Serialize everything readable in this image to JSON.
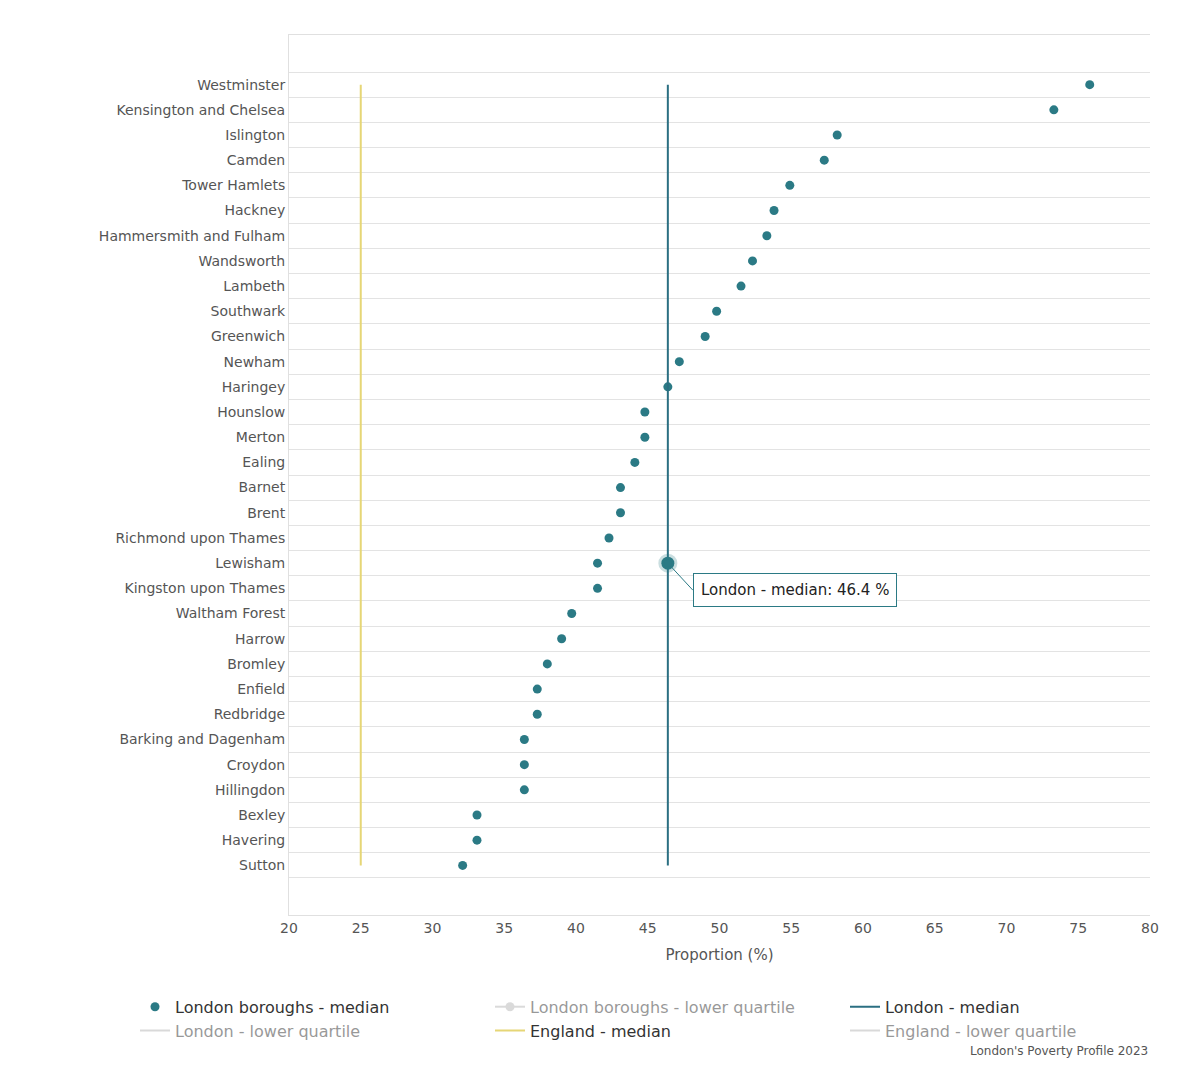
{
  "chart_data": {
    "type": "scatter",
    "orientation": "horizontal",
    "x_label": "Proportion (%)",
    "source": "London's Poverty Profile 2023",
    "categories": [
      "Westminster",
      "Kensington and Chelsea",
      "Islington",
      "Camden",
      "Tower Hamlets",
      "Hackney",
      "Hammersmith and Fulham",
      "Wandsworth",
      "Lambeth",
      "Southwark",
      "Greenwich",
      "Newham",
      "Haringey",
      "Hounslow",
      "Merton",
      "Ealing",
      "Barnet",
      "Brent",
      "Richmond upon Thames",
      "Lewisham",
      "Kingston upon Thames",
      "Waltham Forest",
      "Harrow",
      "Bromley",
      "Enfield",
      "Redbridge",
      "Barking and Dagenham",
      "Croydon",
      "Hillingdon",
      "Bexley",
      "Havering",
      "Sutton"
    ],
    "series": [
      {
        "name": "London boroughs - median",
        "type": "scatter",
        "marker": "circle",
        "color": "#2b7a85",
        "values": [
          75.8,
          73.3,
          58.2,
          57.3,
          54.9,
          53.8,
          53.3,
          52.3,
          51.5,
          49.8,
          49.0,
          47.2,
          46.4,
          44.8,
          44.8,
          44.1,
          43.1,
          43.1,
          42.3,
          41.5,
          41.5,
          39.7,
          39.0,
          38.0,
          37.3,
          37.3,
          36.4,
          36.4,
          36.4,
          33.1,
          33.1,
          32.1
        ]
      },
      {
        "name": "London boroughs - lower quartile",
        "type": "line",
        "marker": "circle",
        "color": "#b5b5b5",
        "values": [
          null,
          null,
          null,
          null,
          null,
          null,
          null,
          null,
          null,
          null,
          null,
          null,
          null,
          null,
          null,
          null,
          null,
          null,
          null,
          null,
          null,
          null,
          null,
          null,
          null,
          null,
          null,
          null,
          null,
          null,
          null,
          null
        ]
      },
      {
        "name": "London - median",
        "type": "line",
        "color": "#2b6f82",
        "values": [
          46.4,
          46.4,
          46.4,
          46.4,
          46.4,
          46.4,
          46.4,
          46.4,
          46.4,
          46.4,
          46.4,
          46.4,
          46.4,
          46.4,
          46.4,
          46.4,
          46.4,
          46.4,
          46.4,
          46.4,
          46.4,
          46.4,
          46.4,
          46.4,
          46.4,
          46.4,
          46.4,
          46.4,
          46.4,
          46.4,
          46.4,
          46.4
        ]
      },
      {
        "name": "London - lower quartile",
        "type": "line",
        "color": "#b5b5b5",
        "values": [
          null,
          null,
          null,
          null,
          null,
          null,
          null,
          null,
          null,
          null,
          null,
          null,
          null,
          null,
          null,
          null,
          null,
          null,
          null,
          null,
          null,
          null,
          null,
          null,
          null,
          null,
          null,
          null,
          null,
          null,
          null,
          null
        ]
      },
      {
        "name": "England - median",
        "type": "line",
        "color": "#e6d676",
        "values": [
          25,
          25,
          25,
          25,
          25,
          25,
          25,
          25,
          25,
          25,
          25,
          25,
          25,
          25,
          25,
          25,
          25,
          25,
          25,
          25,
          25,
          25,
          25,
          25,
          25,
          25,
          25,
          25,
          25,
          25,
          25,
          25
        ]
      },
      {
        "name": "England - lower quartile",
        "type": "line",
        "color": "#b5b5b5",
        "values": [
          null,
          null,
          null,
          null,
          null,
          null,
          null,
          null,
          null,
          null,
          null,
          null,
          null,
          null,
          null,
          null,
          null,
          null,
          null,
          null,
          null,
          null,
          null,
          null,
          null,
          null,
          null,
          null,
          null,
          null,
          null,
          null
        ]
      }
    ],
    "annotations": [
      {
        "text": "London - median: 46.4 %",
        "x": 46.4,
        "category": "Lewisham"
      }
    ],
    "xlim": [
      20,
      80
    ],
    "xticks": [
      20,
      25,
      30,
      35,
      40,
      45,
      50,
      55,
      60,
      65,
      70,
      75,
      80
    ],
    "grid": true,
    "legend": "bottom"
  }
}
